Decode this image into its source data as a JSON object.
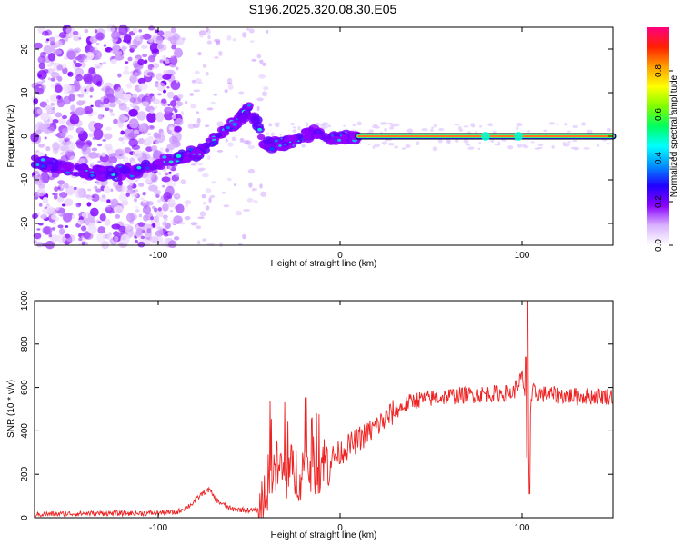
{
  "title": "S196.2025.320.08.30.E05",
  "chart_data": [
    {
      "type": "heatmap",
      "name": "spectrogram",
      "xlabel": "Height of straight line (km)",
      "ylabel": "Frequency (Hz)",
      "xlim": [
        -168,
        150
      ],
      "ylim": [
        -25,
        25
      ],
      "xticks": [
        -100,
        0,
        100
      ],
      "yticks": [
        -20,
        -10,
        0,
        10,
        20
      ],
      "colorbar": {
        "label": "Normalized spectral amplitude",
        "range": [
          0,
          1
        ],
        "ticks": [
          "0.0",
          "0.2",
          "0.4",
          "0.6",
          "0.8"
        ],
        "colors": [
          "#ffffff",
          "#d9b3ff",
          "#8a00ff",
          "#2000ff",
          "#0090ff",
          "#00ffff",
          "#00ff60",
          "#80ff00",
          "#ffff00",
          "#ffa000",
          "#ff2000",
          "#ff0080"
        ]
      },
      "ridge": {
        "x": [
          -168,
          -155,
          -140,
          -125,
          -112,
          -100,
          -90,
          -80,
          -70,
          -62,
          -55,
          -50,
          -46,
          -43,
          -40,
          -30,
          -22,
          -15,
          -8,
          0,
          5,
          10,
          60,
          100,
          150
        ],
        "y": [
          -6,
          -7,
          -8,
          -8.5,
          -8,
          -6,
          -5,
          -4,
          -1,
          2,
          4,
          6,
          3,
          -1,
          -2,
          -1.5,
          -0.5,
          0.8,
          -0.3,
          -0.5,
          -0.2,
          0,
          0,
          0,
          0
        ]
      },
      "steady_line": {
        "x_start": 10,
        "x_end": 150,
        "frequency": 0
      }
    },
    {
      "type": "line",
      "name": "snr",
      "xlabel": "Height of straight line (km)",
      "ylabel": "SNR (10 * v/v)",
      "xlim": [
        -168,
        150
      ],
      "ylim": [
        0,
        1000
      ],
      "xticks": [
        -100,
        0,
        100
      ],
      "yticks": [
        0,
        200,
        400,
        600,
        800,
        1000
      ],
      "series": [
        {
          "name": "SNR",
          "color": "#ee2222",
          "x": [
            -168,
            -140,
            -110,
            -90,
            -82,
            -76,
            -72,
            -68,
            -60,
            -50,
            -44,
            -40,
            -35,
            -30,
            -20,
            -10,
            0,
            10,
            20,
            30,
            40,
            60,
            80,
            95,
            100,
            102,
            103,
            104,
            106,
            110,
            130,
            150
          ],
          "y": [
            15,
            20,
            20,
            25,
            60,
            110,
            130,
            80,
            40,
            35,
            30,
            150,
            230,
            200,
            220,
            250,
            300,
            360,
            420,
            490,
            540,
            560,
            570,
            575,
            650,
            520,
            110,
            430,
            580,
            570,
            560,
            560
          ]
        }
      ]
    }
  ]
}
